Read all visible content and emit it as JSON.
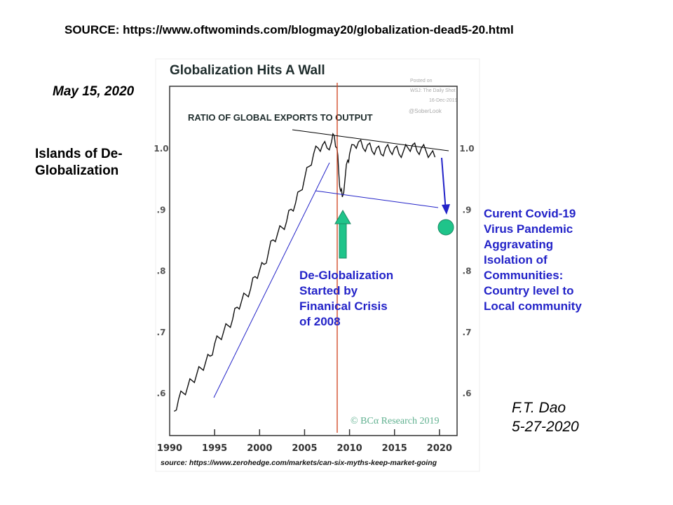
{
  "header": {
    "source": "SOURCE: https://www.oftwominds.com/blogmay20/globalization-dead5-20.html"
  },
  "date_label": "May 15, 2020",
  "side_title": [
    "Islands of De-",
    "Globalization"
  ],
  "annotation_crisis": [
    "De-Globalization",
    "Started by",
    "Finanical Crisis",
    "of 2008"
  ],
  "annotation_covid": [
    "Curent Covid-19",
    "Virus Pandemic",
    "Aggravating",
    "Isolation of",
    "Communities:",
    "Country level to",
    "Local community"
  ],
  "author": [
    "F.T. Dao",
    "5-27-2020"
  ],
  "footer_source": "source: https://www.zerohedge.com/markets/can-six-myths-keep-market-going",
  "colors": {
    "line": "#111111",
    "red_line": "#d0401c",
    "blue": "#2323c8",
    "green": "#1fc48a",
    "bca": "#5fb08f"
  },
  "chart_data": {
    "type": "line",
    "title": "Globalization Hits A Wall",
    "subtitle": "RATIO OF GLOBAL EXPORTS TO OUTPUT",
    "posted": [
      "Posted on",
      "WSJ: The Daily Shot",
      "16-Dec-2019",
      "@SoberLook"
    ],
    "credit": "© BCα Research 2019",
    "xlim": [
      1990,
      2021.5
    ],
    "ylim": [
      0.53,
      1.1
    ],
    "x_ticks": [
      "1990",
      "1995",
      "2000",
      "2005",
      "2010",
      "2015",
      "2020"
    ],
    "y_ticks": [
      ".6",
      ".7",
      ".8",
      ".9",
      "1.0"
    ],
    "y_tick_values": [
      0.6,
      0.7,
      0.8,
      0.9,
      1.0
    ],
    "series": [
      {
        "name": "Ratio of global exports to output",
        "x": [
          1990.5,
          1991,
          1991.5,
          1992,
          1992.5,
          1993,
          1993.5,
          1994,
          1994.5,
          1995,
          1995.5,
          1996,
          1996.5,
          1997,
          1997.5,
          1998,
          1998.5,
          1999,
          1999.5,
          2000,
          2000.5,
          2001,
          2001.5,
          2002,
          2002.5,
          2003,
          2003.5,
          2004,
          2004.5,
          2005,
          2005.5,
          2006,
          2006.5,
          2007,
          2007.5,
          2008,
          2008.3,
          2008.6,
          2008.8,
          2009,
          2009.2,
          2009.5,
          2009.8,
          2010,
          2010.5,
          2011,
          2011.5,
          2012,
          2012.5,
          2013,
          2013.5,
          2014,
          2014.5,
          2015,
          2015.5,
          2016,
          2016.5,
          2017,
          2017.5,
          2018,
          2018.5,
          2019,
          2019.5
        ],
        "y": [
          0.57,
          0.59,
          0.6,
          0.61,
          0.62,
          0.63,
          0.64,
          0.65,
          0.66,
          0.68,
          0.69,
          0.7,
          0.71,
          0.72,
          0.74,
          0.75,
          0.76,
          0.77,
          0.79,
          0.8,
          0.81,
          0.83,
          0.85,
          0.86,
          0.87,
          0.88,
          0.9,
          0.91,
          0.93,
          0.95,
          0.97,
          0.99,
          1.0,
          1.005,
          1.0,
          1.01,
          1.02,
          1.0,
          0.96,
          0.93,
          0.92,
          0.95,
          0.98,
          0.99,
          1.005,
          1.01,
          1.0,
          1.005,
          0.995,
          1.0,
          0.99,
          1.0,
          0.995,
          1.0,
          0.99,
          0.995,
          1.0,
          1.005,
          0.995,
          1.0,
          0.995,
          0.99,
          0.985
        ]
      }
    ]
  }
}
